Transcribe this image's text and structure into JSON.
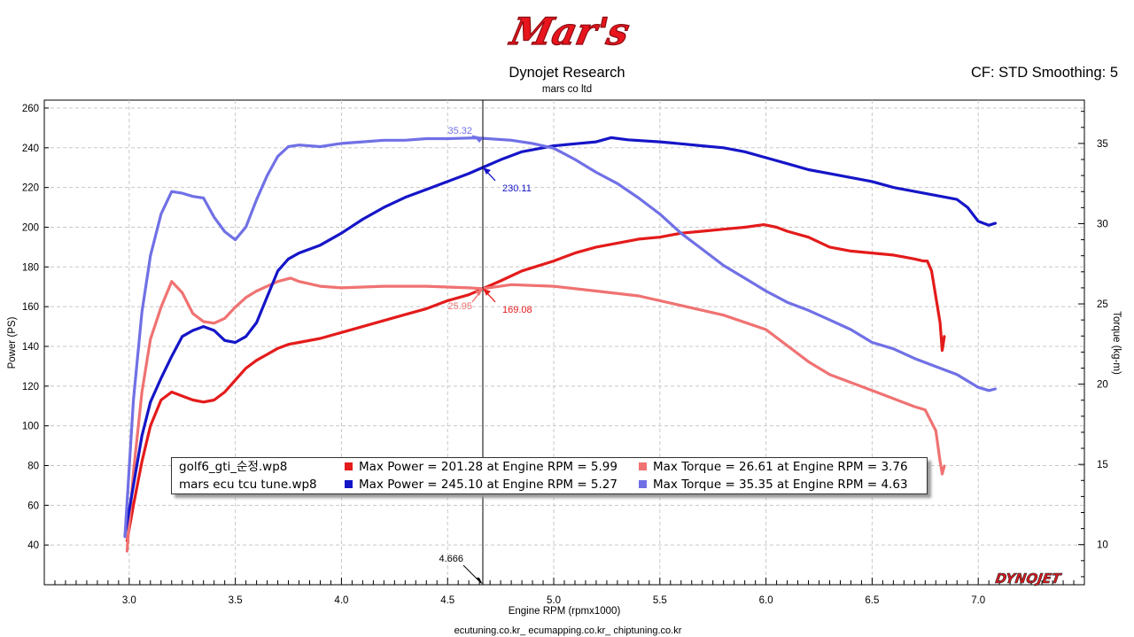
{
  "header": {
    "logo_text": "Mar's",
    "title": "Dynojet Research",
    "subtitle": "mars co ltd",
    "settings": "CF: STD Smoothing: 5"
  },
  "footer": {
    "links": "ecutuning.co.kr_ ecumapping.co.kr_ chiptuning.co.kr",
    "brand": "DYNOJET"
  },
  "legend": [
    {
      "file": "golf6_gti_순정.wp8",
      "power_text": "Max Power = 201.28 at Engine RPM = 5.99",
      "power_color": "#e41b1b",
      "torque_text": "Max Torque = 26.61 at Engine RPM = 3.76",
      "torque_color": "#f07272"
    },
    {
      "file": "mars ecu tcu tune.wp8",
      "power_text": "Max Power = 245.10 at Engine RPM = 5.27",
      "power_color": "#1515c8",
      "torque_text": "Max Torque = 35.35 at Engine RPM = 4.63",
      "torque_color": "#7070e6"
    }
  ],
  "chart_data": {
    "type": "line",
    "xlabel": "Engine RPM (rpmx1000)",
    "ylabel": "Power (PS)",
    "y2label": "Torque (kg-m)",
    "xlim": [
      2.6,
      7.5
    ],
    "ylim": [
      20,
      264
    ],
    "y2lim": [
      7.5,
      37.7
    ],
    "xticks": [
      "3.0",
      "3.5",
      "4.0",
      "4.5",
      "5.0",
      "5.5",
      "6.0",
      "6.5",
      "7.0"
    ],
    "yticks": [
      "40",
      "60",
      "80",
      "100",
      "120",
      "140",
      "160",
      "180",
      "200",
      "220",
      "240",
      "260"
    ],
    "y2ticks": [
      "10",
      "15",
      "20",
      "25",
      "30",
      "35"
    ],
    "grid": true,
    "cursor": {
      "x": 4.666,
      "x_label": "4.666",
      "labels": [
        {
          "text": "230.11",
          "color": "#1515c8",
          "series": "mars ecu tcu tune.wp8 power",
          "axis": "left",
          "value": 230.11
        },
        {
          "text": "35.32",
          "color": "#7070e6",
          "series": "mars ecu tcu tune.wp8 torque",
          "axis": "right",
          "value": 35.32
        },
        {
          "text": "169.08",
          "color": "#e41b1b",
          "series": "golf6_gti_순정.wp8 power",
          "axis": "left",
          "value": 169.08
        },
        {
          "text": "25.95",
          "color": "#f07272",
          "series": "golf6_gti_순정.wp8 torque",
          "axis": "right",
          "value": 25.95
        }
      ]
    },
    "series": [
      {
        "name": "golf6_gti_순정.wp8 power",
        "axis": "left",
        "color": "#e41b1b",
        "x": [
          2.99,
          3.02,
          3.06,
          3.1,
          3.15,
          3.2,
          3.25,
          3.3,
          3.35,
          3.4,
          3.45,
          3.5,
          3.55,
          3.6,
          3.65,
          3.7,
          3.75,
          3.8,
          3.9,
          4.0,
          4.1,
          4.2,
          4.3,
          4.4,
          4.5,
          4.6,
          4.666,
          4.75,
          4.85,
          5.0,
          5.1,
          5.2,
          5.3,
          5.4,
          5.5,
          5.6,
          5.7,
          5.8,
          5.9,
          5.99,
          6.05,
          6.1,
          6.2,
          6.3,
          6.4,
          6.5,
          6.6,
          6.7,
          6.74,
          6.76,
          6.78,
          6.8,
          6.82,
          6.83,
          6.84
        ],
        "values": [
          42,
          60,
          82,
          100,
          113,
          117,
          115,
          113,
          112,
          113,
          117,
          123,
          129,
          133,
          136,
          139,
          141,
          142,
          144,
          147,
          150,
          153,
          156,
          159,
          163,
          166,
          169.08,
          173,
          178,
          183,
          187,
          190,
          192,
          194,
          195,
          197,
          198,
          199,
          200,
          201.28,
          200,
          198,
          195,
          190,
          188,
          187,
          186,
          184,
          183,
          183,
          178,
          165,
          152,
          138,
          145
        ]
      },
      {
        "name": "golf6_gti_순정.wp8 torque",
        "axis": "right",
        "color": "#f07272",
        "x": [
          2.99,
          3.02,
          3.06,
          3.1,
          3.15,
          3.2,
          3.25,
          3.3,
          3.35,
          3.4,
          3.45,
          3.5,
          3.55,
          3.6,
          3.65,
          3.7,
          3.76,
          3.8,
          3.9,
          4.0,
          4.2,
          4.4,
          4.6,
          4.666,
          4.8,
          5.0,
          5.2,
          5.4,
          5.6,
          5.8,
          6.0,
          6.1,
          6.2,
          6.3,
          6.4,
          6.5,
          6.6,
          6.7,
          6.75,
          6.8,
          6.82,
          6.83,
          6.84
        ],
        "values": [
          9.6,
          14.5,
          19.5,
          22.8,
          24.8,
          26.4,
          25.7,
          24.4,
          23.9,
          23.8,
          24.1,
          24.8,
          25.4,
          25.8,
          26.1,
          26.4,
          26.61,
          26.4,
          26.1,
          26.0,
          26.1,
          26.1,
          26.0,
          25.95,
          26.2,
          26.1,
          25.8,
          25.5,
          24.9,
          24.3,
          23.4,
          22.4,
          21.4,
          20.6,
          20.1,
          19.6,
          19.1,
          18.6,
          18.4,
          17.1,
          15.2,
          14.4,
          14.9
        ]
      },
      {
        "name": "mars ecu tcu tune.wp8 power",
        "axis": "left",
        "color": "#1515c8",
        "x": [
          2.98,
          3.02,
          3.06,
          3.1,
          3.15,
          3.2,
          3.25,
          3.3,
          3.35,
          3.4,
          3.45,
          3.5,
          3.55,
          3.6,
          3.65,
          3.7,
          3.75,
          3.8,
          3.9,
          4.0,
          4.1,
          4.2,
          4.3,
          4.4,
          4.5,
          4.6,
          4.666,
          4.75,
          4.85,
          5.0,
          5.1,
          5.2,
          5.27,
          5.35,
          5.5,
          5.6,
          5.7,
          5.8,
          5.9,
          6.0,
          6.1,
          6.2,
          6.3,
          6.4,
          6.5,
          6.6,
          6.7,
          6.8,
          6.9,
          6.95,
          7.0,
          7.05,
          7.08
        ],
        "values": [
          45,
          70,
          95,
          112,
          124,
          135,
          145,
          148,
          150,
          148,
          143,
          142,
          145,
          152,
          165,
          178,
          184,
          187,
          191,
          197,
          204,
          210,
          215,
          219,
          223,
          227,
          230.11,
          234,
          238,
          241,
          242,
          243,
          245.1,
          244,
          243,
          242,
          241,
          240,
          238,
          235,
          232,
          229,
          227,
          225,
          223,
          220,
          218,
          216,
          214,
          210,
          203,
          201,
          202
        ]
      },
      {
        "name": "mars ecu tcu tune.wp8 torque",
        "axis": "right",
        "color": "#7070e6",
        "x": [
          2.98,
          3.02,
          3.06,
          3.1,
          3.15,
          3.2,
          3.25,
          3.3,
          3.35,
          3.4,
          3.45,
          3.5,
          3.55,
          3.6,
          3.65,
          3.7,
          3.75,
          3.8,
          3.9,
          4.0,
          4.1,
          4.2,
          4.3,
          4.4,
          4.5,
          4.63,
          4.666,
          4.8,
          4.9,
          5.0,
          5.1,
          5.2,
          5.3,
          5.4,
          5.5,
          5.6,
          5.7,
          5.8,
          5.9,
          6.0,
          6.1,
          6.2,
          6.3,
          6.4,
          6.5,
          6.6,
          6.7,
          6.8,
          6.9,
          6.95,
          7.0,
          7.05,
          7.08
        ],
        "values": [
          10.5,
          19.0,
          24.5,
          28.0,
          30.6,
          32.0,
          31.9,
          31.7,
          31.6,
          30.4,
          29.5,
          29.0,
          29.8,
          31.5,
          33.0,
          34.2,
          34.8,
          34.9,
          34.8,
          35.0,
          35.1,
          35.2,
          35.2,
          35.3,
          35.3,
          35.35,
          35.32,
          35.2,
          35.0,
          34.7,
          34.0,
          33.2,
          32.5,
          31.6,
          30.6,
          29.4,
          28.4,
          27.4,
          26.6,
          25.8,
          25.1,
          24.6,
          24.0,
          23.4,
          22.6,
          22.2,
          21.6,
          21.1,
          20.6,
          20.2,
          19.8,
          19.6,
          19.7
        ]
      }
    ]
  }
}
